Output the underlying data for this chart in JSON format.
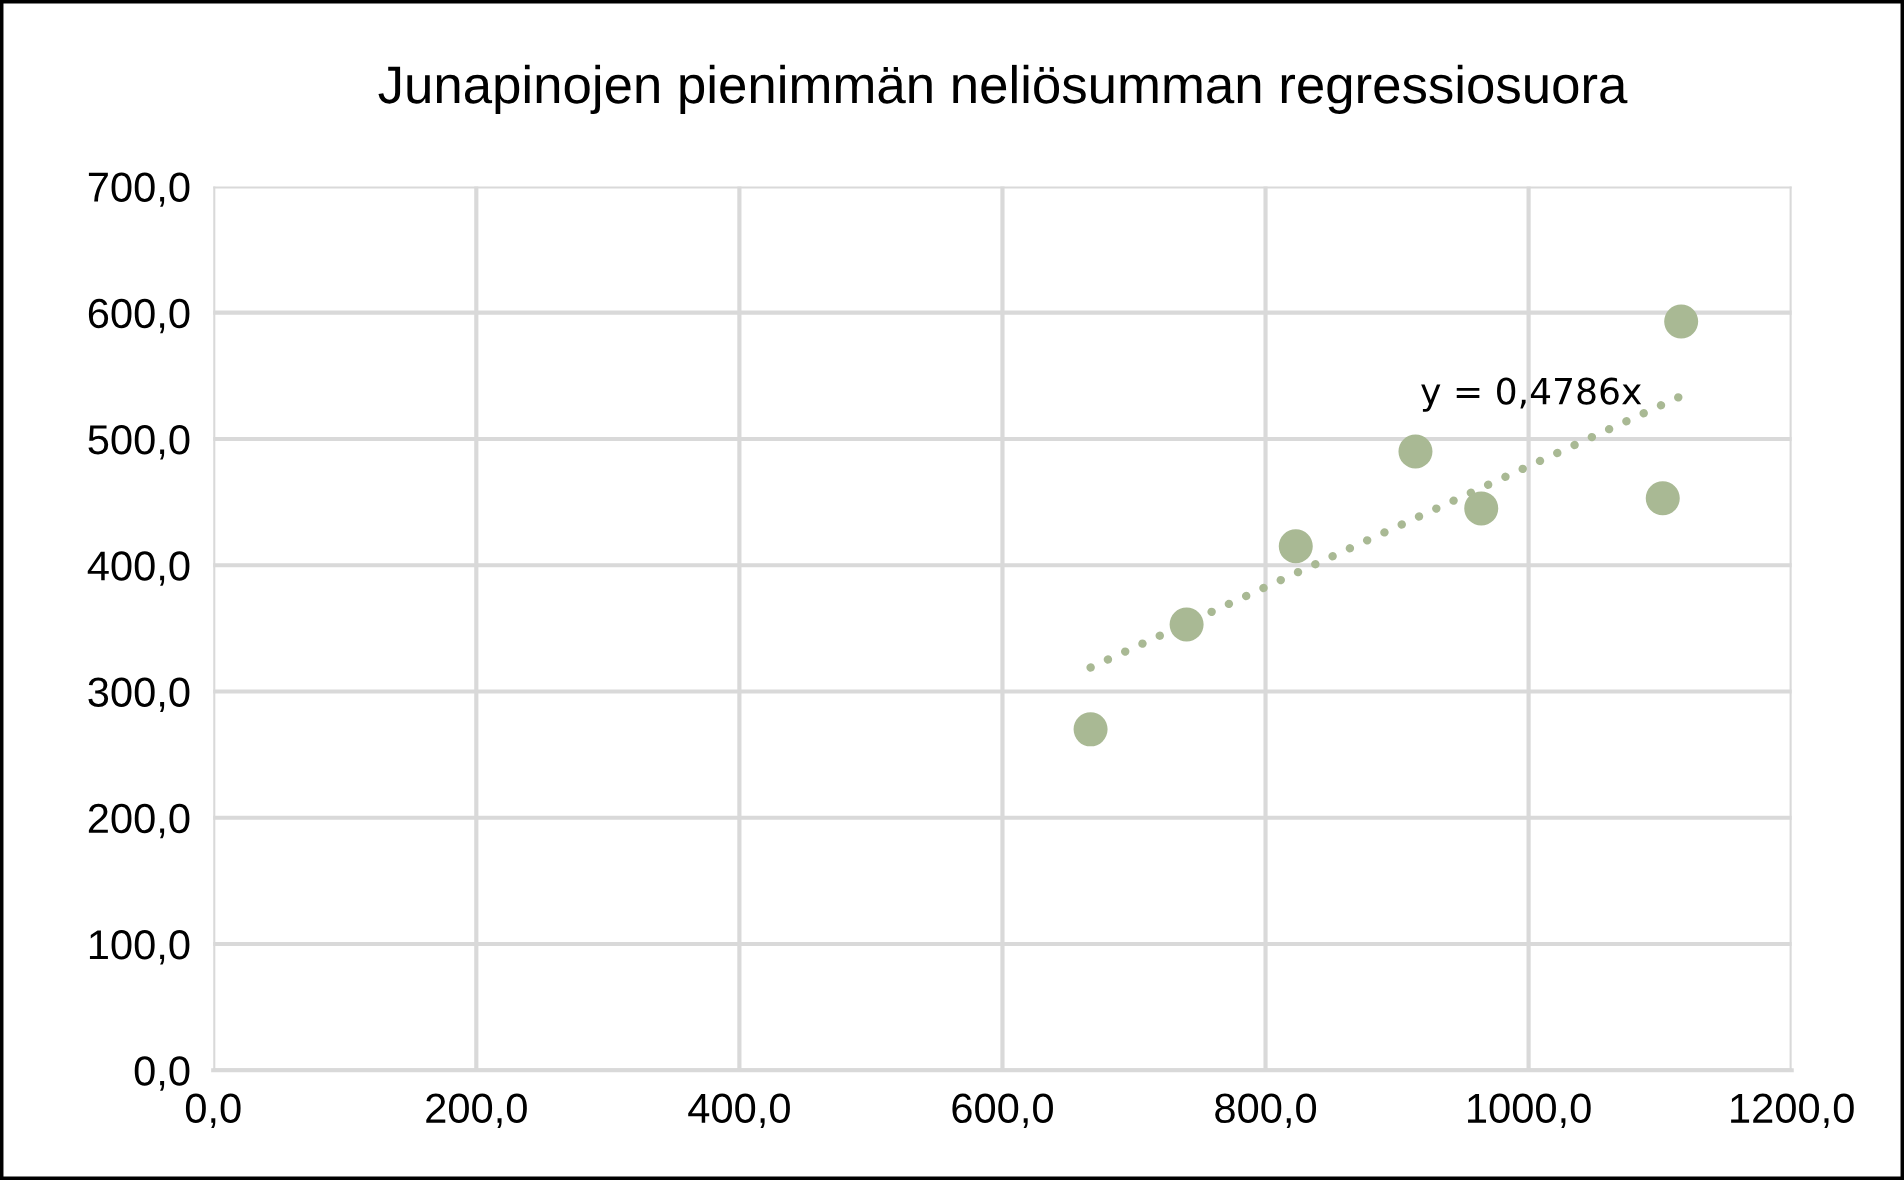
{
  "chart_data": {
    "type": "scatter",
    "title": "Junapinojen pienimmän neliösumman regressiosuora",
    "x": [
      667,
      740,
      823,
      914,
      964,
      1102,
      1116
    ],
    "series": [
      {
        "color": "#a9b994",
        "marker": "circle",
        "values": [
          270,
          353,
          415,
          490,
          445,
          453,
          593
        ]
      },
      {
        "type": "line",
        "color": "#a9b994",
        "line_style": "dotted",
        "marker": "none",
        "x": [
          667,
          1116
        ],
        "values": [
          319,
          534
        ]
      }
    ],
    "annotations": [
      "y = 0,4786x"
    ],
    "xlim": [
      0,
      1200
    ],
    "ylim": [
      0,
      700
    ],
    "xticks": [
      {
        "value": 0,
        "label": "0,0"
      },
      {
        "value": 200,
        "label": "200,0"
      },
      {
        "value": 400,
        "label": "400,0"
      },
      {
        "value": 600,
        "label": "600,0"
      },
      {
        "value": 800,
        "label": "800,0"
      },
      {
        "value": 1000,
        "label": "1000,0"
      },
      {
        "value": 1200,
        "label": "1200,0"
      }
    ],
    "yticks": [
      {
        "value": 0,
        "label": "0,0"
      },
      {
        "value": 100,
        "label": "100,0"
      },
      {
        "value": 200,
        "label": "200,0"
      },
      {
        "value": 300,
        "label": "300,0"
      },
      {
        "value": 400,
        "label": "400,0"
      },
      {
        "value": 500,
        "label": "500,0"
      },
      {
        "value": 600,
        "label": "600,0"
      },
      {
        "value": 700,
        "label": "700,0"
      }
    ],
    "grid": true
  }
}
